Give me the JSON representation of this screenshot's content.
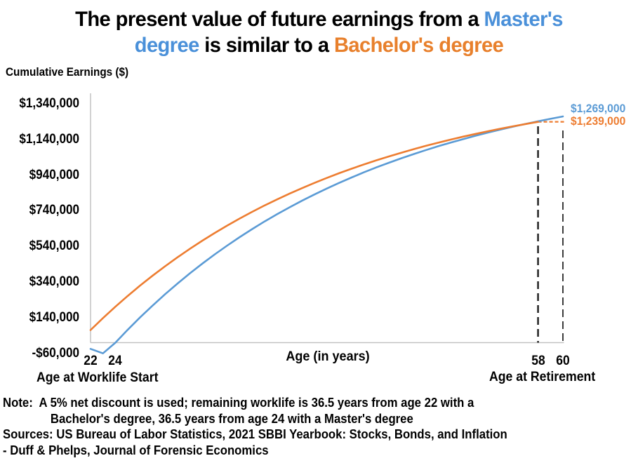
{
  "title": {
    "line1": [
      {
        "text": "The present value of future earnings from a ",
        "color": "#000000"
      },
      {
        "text": "Master's",
        "color": "#4A90D9"
      }
    ],
    "line2": [
      {
        "text": "degree",
        "color": "#4A90D9"
      },
      {
        "text": " is similar to a ",
        "color": "#000000"
      },
      {
        "text": "Bachelor's degree",
        "color": "#E8802C"
      }
    ]
  },
  "chart_data": {
    "type": "line",
    "ylabel": "Cumulative Earnings ($)",
    "xlabel": "Age (in years)",
    "x_axis_left_caption": "Age at Worklife Start",
    "x_axis_right_caption": "Age at Retirement",
    "x_range": [
      22,
      60
    ],
    "y_range": [
      -60000,
      1340000
    ],
    "grid": false,
    "legend": "none (series labeled by colored title words and end labels)",
    "axis_color": "#BFBFBF",
    "y_ticks": [
      {
        "label": "$1,340,000",
        "value": 1340000
      },
      {
        "label": "$1,140,000",
        "value": 1140000
      },
      {
        "label": "$940,000",
        "value": 940000
      },
      {
        "label": "$740,000",
        "value": 740000
      },
      {
        "label": "$540,000",
        "value": 540000
      },
      {
        "label": "$340,000",
        "value": 340000
      },
      {
        "label": "$140,000",
        "value": 140000
      },
      {
        "label": "-$60,000",
        "value": -60000
      }
    ],
    "x_ticks": [
      {
        "label": "22",
        "value": 22
      },
      {
        "label": "24",
        "value": 24
      },
      {
        "label": "58",
        "value": 58
      },
      {
        "label": "60",
        "value": 60
      }
    ],
    "series": [
      {
        "name": "Master's degree",
        "color": "#5B9BD5",
        "x": [
          22,
          23,
          24,
          25,
          26,
          27,
          28,
          29,
          30,
          31,
          32,
          33,
          34,
          35,
          36,
          37,
          38,
          39,
          40,
          41,
          42,
          43,
          44,
          45,
          46,
          47,
          48,
          49,
          50,
          51,
          52,
          53,
          54,
          55,
          56,
          57,
          58,
          59,
          60
        ],
        "y": [
          -35000,
          -60000,
          0,
          73000,
          142600,
          208900,
          272000,
          332000,
          389300,
          443800,
          495700,
          545100,
          592200,
          637100,
          679800,
          720400,
          759200,
          796100,
          831200,
          864700,
          896500,
          926900,
          955800,
          983300,
          1009500,
          1034500,
          1058300,
          1080900,
          1102500,
          1123000,
          1142600,
          1161200,
          1179000,
          1195900,
          1212000,
          1227300,
          1241900,
          1255800,
          1269000
        ]
      },
      {
        "name": "Bachelor's degree",
        "color": "#ED7D31",
        "x": [
          22,
          23,
          24,
          25,
          26,
          27,
          28,
          29,
          30,
          31,
          32,
          33,
          34,
          35,
          36,
          37,
          38,
          39,
          40,
          41,
          42,
          43,
          44,
          45,
          46,
          47,
          48,
          49,
          50,
          51,
          52,
          53,
          54,
          55,
          56,
          57,
          58
        ],
        "y": [
          70600,
          137900,
          201900,
          262900,
          321000,
          376300,
          429000,
          479200,
          527000,
          572500,
          615800,
          657100,
          696400,
          733900,
          769500,
          803500,
          835800,
          866700,
          896000,
          923900,
          950600,
          975900,
          1000100,
          1023100,
          1044900,
          1065800,
          1085700,
          1104600,
          1122600,
          1139700,
          1156100,
          1171600,
          1186400,
          1200500,
          1213900,
          1226800,
          1239000
        ]
      }
    ],
    "guides": {
      "retirement_vlines": [
        {
          "age": 58,
          "color": "#1a1a1a"
        },
        {
          "age": 60,
          "color": "#1a1a1a"
        }
      ],
      "bachelor_projection_hline": {
        "from_age": 58,
        "to_age": 60.1,
        "value": 1239000,
        "color": "#ED7D31"
      }
    },
    "end_labels": [
      {
        "series": "Master's degree",
        "label": "$1,269,000",
        "value": 1269000,
        "color": "#5B9BD5"
      },
      {
        "series": "Bachelor's degree",
        "label": "$1,239,000",
        "value": 1239000,
        "color": "#ED7D31"
      }
    ]
  },
  "notes": {
    "note1": "Note:  A 5% net discount is used; remaining worklife is 36.5 years from age 22 with a",
    "note2": "Bachelor's degree, 36.5 years from age 24 with a Master's degree",
    "sources1": "Sources: US Bureau of Labor Statistics, 2021 SBBI Yearbook: Stocks, Bonds, and Inflation",
    "sources2": "- Duff & Phelps, Journal of Forensic Economics"
  }
}
